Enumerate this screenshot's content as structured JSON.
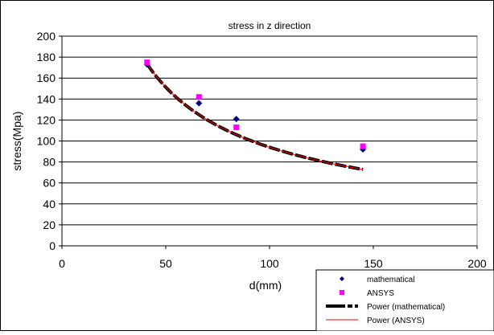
{
  "chart_data": {
    "type": "scatter",
    "title": "stress in z direction",
    "xlabel": "d(mm)",
    "ylabel": "stress(Mpa)",
    "xlim": [
      0,
      200
    ],
    "ylim": [
      0,
      200
    ],
    "x_ticks": [
      0,
      50,
      100,
      150,
      200
    ],
    "y_ticks": [
      0,
      20,
      40,
      60,
      80,
      100,
      120,
      140,
      160,
      180,
      200
    ],
    "grid": "horizontal",
    "legend_position": "bottom-right",
    "series": [
      {
        "name": "mathematical",
        "kind": "points",
        "marker": "diamond",
        "color": "#000080",
        "x": [
          41,
          66,
          84,
          145
        ],
        "y": [
          173,
          136,
          121,
          92
        ]
      },
      {
        "name": "ANSYS",
        "kind": "points",
        "marker": "square",
        "color": "#ff00ff",
        "x": [
          41,
          66,
          84,
          145
        ],
        "y": [
          175,
          142,
          113,
          95
        ]
      },
      {
        "name": "Power (mathematical)",
        "kind": "trendline",
        "color": "#000000",
        "dash": "dashed-thick",
        "x": [
          41,
          145
        ],
        "power_fit": {
          "a": 2215,
          "b": -0.686
        }
      },
      {
        "name": "Power (ANSYS)",
        "kind": "trendline",
        "color": "#ff0000",
        "dash": "solid",
        "x": [
          41,
          145
        ],
        "power_fit": {
          "a": 2215,
          "b": -0.686
        }
      }
    ]
  }
}
